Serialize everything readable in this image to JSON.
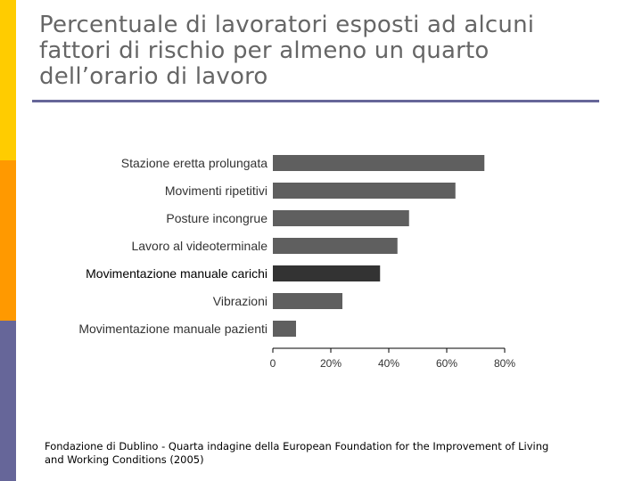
{
  "slide": {
    "title": "Percentuale di lavoratori esposti ad alcuni fattori di rischio per almeno un quarto dell’orario di lavoro",
    "source": "Fondazione di Dublino - Quarta indagine della European Foundation for the Improvement of Living and Working Conditions (2005)",
    "colors": {
      "stripe_top": "#FFCC00",
      "stripe_mid": "#FF9900",
      "stripe_bottom": "#666699",
      "title": "#666666",
      "rule": "#666699"
    }
  },
  "chart_data": {
    "type": "bar",
    "orientation": "horizontal",
    "categories": [
      "Stazione eretta prolungata",
      "Movimenti ripetitivi",
      "Posture incongrue",
      "Lavoro al videoterminale",
      "Movimentazione manuale carichi",
      "Vibrazioni",
      "Movimentazione manuale pazienti"
    ],
    "values": [
      73,
      63,
      47,
      43,
      37,
      24,
      8
    ],
    "highlight_index": 4,
    "xlim": [
      0,
      80
    ],
    "xticks": [
      "0",
      "20%",
      "40%",
      "60%",
      "80%"
    ],
    "xtick_values": [
      0,
      20,
      40,
      60,
      80
    ],
    "grid": false,
    "colors": {
      "bar": "#5f5f5f",
      "bar_highlight": "#333333"
    }
  }
}
